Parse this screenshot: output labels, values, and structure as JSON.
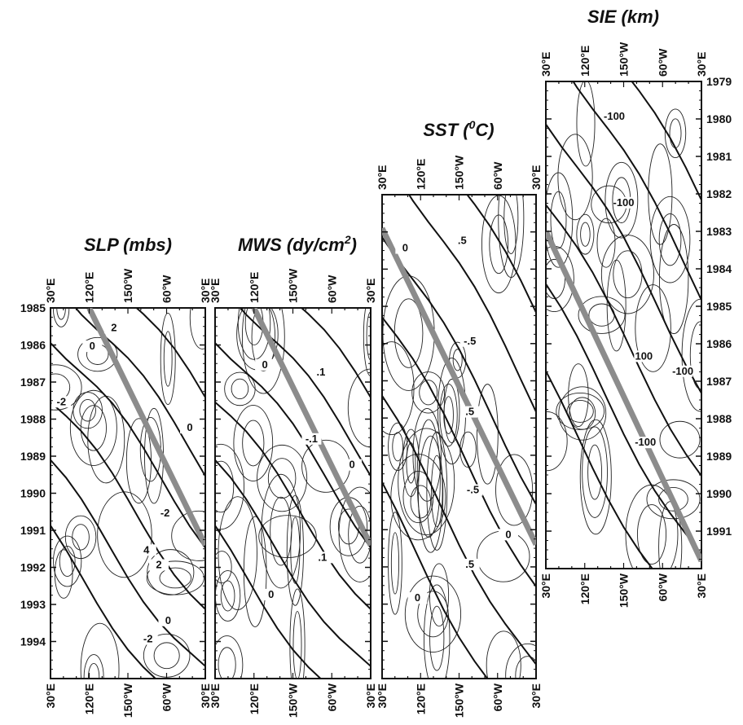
{
  "chart_data": {
    "type": "heatmap",
    "layout": "four longitude-time (Hovmoller) contour panels side by side",
    "x_tick_labels": [
      "30°E",
      "120°E",
      "150°W",
      "60°W",
      "30°E"
    ],
    "panels": [
      {
        "name": "SLP",
        "title": "SLP (mbs)",
        "title_parts": {
          "main": "SLP (mbs)",
          "sup": ""
        },
        "years": [
          "1985",
          "1986",
          "1987",
          "1988",
          "1989",
          "1990",
          "1991",
          "1992",
          "1993",
          "1994"
        ],
        "year_range": [
          1985,
          1995
        ],
        "trend_line": {
          "start": {
            "lon_label": "120°E",
            "year": 1985
          },
          "end": {
            "lon_label": "30°E",
            "year": 1991.4
          }
        },
        "contour_labels": [
          {
            "text": "2",
            "lon_frac": 0.41,
            "year": 1985.6
          },
          {
            "text": "0",
            "lon_frac": 0.27,
            "year": 1986.1
          },
          {
            "text": "-2",
            "lon_frac": 0.07,
            "year": 1987.6
          },
          {
            "text": "0",
            "lon_frac": 0.9,
            "year": 1988.3
          },
          {
            "text": "-2",
            "lon_frac": 0.74,
            "year": 1990.6
          },
          {
            "text": "4",
            "lon_frac": 0.62,
            "year": 1991.6
          },
          {
            "text": "2",
            "lon_frac": 0.7,
            "year": 1992.0
          },
          {
            "text": "0",
            "lon_frac": 0.76,
            "year": 1993.5
          },
          {
            "text": "-2",
            "lon_frac": 0.63,
            "year": 1994.0
          }
        ]
      },
      {
        "name": "MWS",
        "title": "MWS (dy/cm2)",
        "title_parts": {
          "main": "MWS (dy/cm",
          "sup": "2",
          "tail": ")"
        },
        "years": [],
        "year_range": [
          1985,
          1995
        ],
        "trend_line": {
          "start": {
            "lon_label": "120°E",
            "year": 1985
          },
          "end": {
            "lon_label": "30°E",
            "year": 1991.4
          }
        },
        "contour_labels": [
          {
            "text": "0",
            "lon_frac": 0.32,
            "year": 1986.6
          },
          {
            "text": ".1",
            "lon_frac": 0.68,
            "year": 1986.8
          },
          {
            "text": "-.1",
            "lon_frac": 0.62,
            "year": 1988.6
          },
          {
            "text": "0",
            "lon_frac": 0.88,
            "year": 1989.3
          },
          {
            "text": ".1",
            "lon_frac": 0.69,
            "year": 1991.8
          },
          {
            "text": "0",
            "lon_frac": 0.36,
            "year": 1992.8
          }
        ]
      },
      {
        "name": "SST",
        "title": "SST (0C)",
        "title_parts": {
          "main": "SST (",
          "sup": "0",
          "tail": "C)"
        },
        "years": [],
        "year_range": [
          1982,
          1995
        ],
        "trend_line": {
          "start": {
            "lon_label": "30°E",
            "year": 1982.9
          },
          "end": {
            "lon_label": "30°E",
            "year": 1991.4
          }
        },
        "contour_labels": [
          {
            "text": "0",
            "lon_frac": 0.15,
            "year": 1983.5
          },
          {
            "text": ".5",
            "lon_frac": 0.52,
            "year": 1983.3
          },
          {
            "text": "-.5",
            "lon_frac": 0.57,
            "year": 1986.0
          },
          {
            "text": ".5",
            "lon_frac": 0.57,
            "year": 1987.9
          },
          {
            "text": "-.5",
            "lon_frac": 0.59,
            "year": 1990.0
          },
          {
            "text": "0",
            "lon_frac": 0.82,
            "year": 1991.2
          },
          {
            "text": ".5",
            "lon_frac": 0.57,
            "year": 1992.0
          },
          {
            "text": "0",
            "lon_frac": 0.23,
            "year": 1992.9
          }
        ]
      },
      {
        "name": "SIE",
        "title": "SIE (km)",
        "title_parts": {
          "main": "SIE (km)",
          "sup": ""
        },
        "years": [
          "1979",
          "1980",
          "1981",
          "1982",
          "1983",
          "1984",
          "1985",
          "1986",
          "1987",
          "1988",
          "1989",
          "1990",
          "1991"
        ],
        "year_range": [
          1979,
          1992
        ],
        "trend_line": {
          "start": {
            "lon_label": "30°E",
            "year": 1983.0
          },
          "end": {
            "lon_label": "30°E",
            "year": 1991.8
          }
        },
        "contour_labels": [
          {
            "text": "-100",
            "lon_frac": 0.44,
            "year": 1980.0
          },
          {
            "text": "-100",
            "lon_frac": 0.5,
            "year": 1982.3
          },
          {
            "text": "100",
            "lon_frac": 0.63,
            "year": 1986.4
          },
          {
            "text": "-100",
            "lon_frac": 0.88,
            "year": 1986.8
          },
          {
            "text": "-100",
            "lon_frac": 0.64,
            "year": 1988.7
          }
        ]
      }
    ]
  }
}
